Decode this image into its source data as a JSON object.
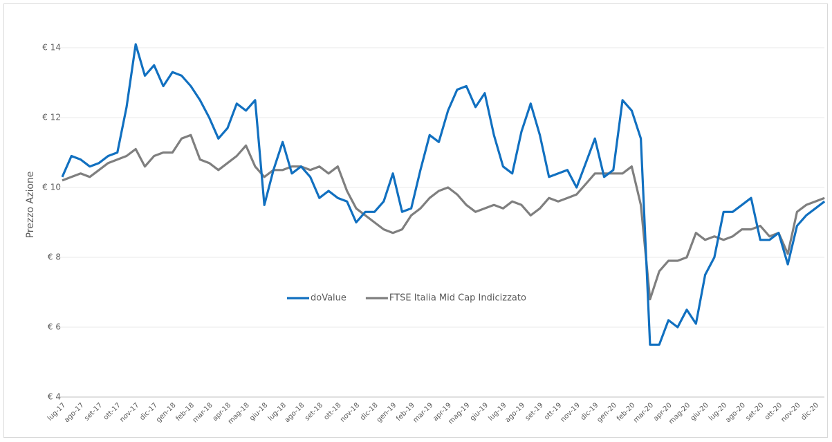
{
  "chart_data": {
    "type": "line",
    "y_label": "Prezzo Azione",
    "categories": [
      "lug-17",
      null,
      "ago-17",
      null,
      "set-17",
      null,
      "ott-17",
      null,
      "nov-17",
      null,
      "dic-17",
      null,
      "gen-18",
      null,
      "feb-18",
      null,
      "mar-18",
      null,
      "apr-18",
      null,
      "mag-18",
      null,
      "giu-18",
      null,
      "lug-18",
      null,
      "ago-18",
      null,
      "set-18",
      null,
      "ott-18",
      null,
      "nov-18",
      null,
      "dic-18",
      null,
      "gen-19",
      null,
      "feb-19",
      null,
      "mar-19",
      null,
      "apr-19",
      null,
      "mag-19",
      null,
      "giu-19",
      null,
      "lug-19",
      null,
      "ago-19",
      null,
      "set-19",
      null,
      "ott-19",
      null,
      "nov-19",
      null,
      "dic-19",
      null,
      "gen-20",
      null,
      "feb-20",
      null,
      "mar-20",
      null,
      "apr-20",
      null,
      "mag-20",
      null,
      "giu-20",
      null,
      "lug-20",
      null,
      "ago-20",
      null,
      "set-20",
      null,
      "ott-20",
      null,
      "nov-20",
      null,
      "dic-20",
      null
    ],
    "series": [
      {
        "name": "doValue",
        "color": "#1170c0",
        "values": [
          10.3,
          10.9,
          10.8,
          10.6,
          10.7,
          10.9,
          11.0,
          12.3,
          14.1,
          13.2,
          13.5,
          12.9,
          13.3,
          13.2,
          12.9,
          12.5,
          12.0,
          11.4,
          11.7,
          12.4,
          12.2,
          12.5,
          9.5,
          10.5,
          11.3,
          10.4,
          10.6,
          10.3,
          9.7,
          9.9,
          9.7,
          9.6,
          9.0,
          9.3,
          9.3,
          9.6,
          10.4,
          9.3,
          9.4,
          10.5,
          11.5,
          11.3,
          12.2,
          12.8,
          12.9,
          12.3,
          12.7,
          11.5,
          10.6,
          10.4,
          11.6,
          12.4,
          11.5,
          10.3,
          10.4,
          10.5,
          10.0,
          10.7,
          11.4,
          10.3,
          10.5,
          12.5,
          12.2,
          11.4,
          5.5,
          5.5,
          6.2,
          6.0,
          6.5,
          6.1,
          7.5,
          8.0,
          9.3,
          9.3,
          9.5,
          9.7,
          8.5,
          8.5,
          8.7,
          7.8,
          8.9,
          9.2,
          9.4,
          9.6
        ]
      },
      {
        "name": "FTSE Italia Mid Cap Indicizzato",
        "color": "#7f7f7f",
        "values": [
          10.2,
          10.3,
          10.4,
          10.3,
          10.5,
          10.7,
          10.8,
          10.9,
          11.1,
          10.6,
          10.9,
          11.0,
          11.0,
          11.4,
          11.5,
          10.8,
          10.7,
          10.5,
          10.7,
          10.9,
          11.2,
          10.6,
          10.3,
          10.5,
          10.5,
          10.6,
          10.6,
          10.5,
          10.6,
          10.4,
          10.6,
          9.9,
          9.4,
          9.2,
          9.0,
          8.8,
          8.7,
          8.8,
          9.2,
          9.4,
          9.7,
          9.9,
          10.0,
          9.8,
          9.5,
          9.3,
          9.4,
          9.5,
          9.4,
          9.6,
          9.5,
          9.2,
          9.4,
          9.7,
          9.6,
          9.7,
          9.8,
          10.1,
          10.4,
          10.4,
          10.4,
          10.4,
          10.6,
          9.5,
          6.8,
          7.6,
          7.9,
          7.9,
          8.0,
          8.7,
          8.5,
          8.6,
          8.5,
          8.6,
          8.8,
          8.8,
          8.9,
          8.6,
          8.7,
          8.1,
          9.3,
          9.5,
          9.6,
          9.7
        ]
      }
    ],
    "ylim": [
      4,
      15
    ],
    "yticks": [
      {
        "value": 4,
        "label": "€ 4"
      },
      {
        "value": 6,
        "label": "€ 6"
      },
      {
        "value": 8,
        "label": "€ 8"
      },
      {
        "value": 10,
        "label": "€ 10"
      },
      {
        "value": 12,
        "label": "€ 12"
      },
      {
        "value": 14,
        "label": "€ 14"
      }
    ],
    "grid": true,
    "legend": "center"
  }
}
